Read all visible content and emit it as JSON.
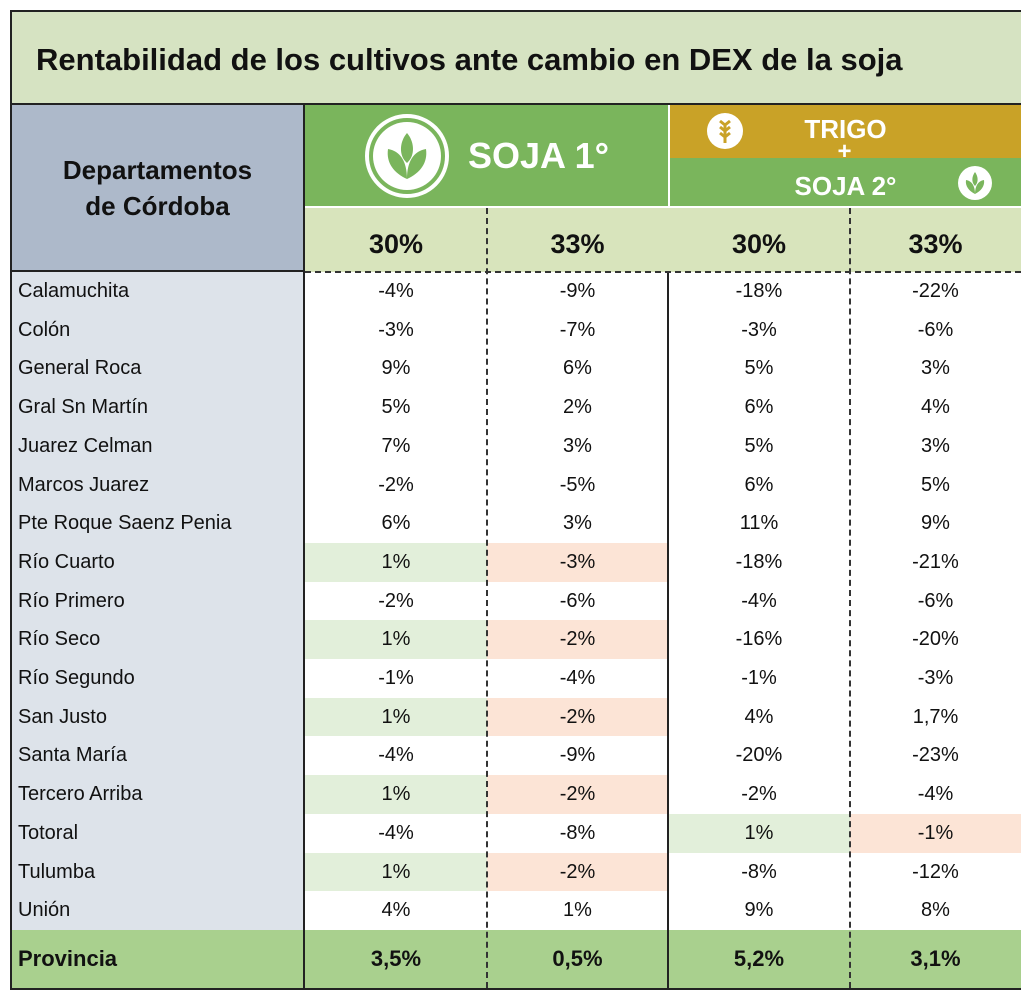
{
  "title": "Rentabilidad de los cultivos ante cambio en DEX de la soja",
  "header": {
    "department": "Departamentos de Córdoba",
    "group1": "SOJA 1°",
    "group2_top": "TRIGO",
    "plus": "+",
    "group2_bottom": "SOJA 2°",
    "subheaders": [
      "30%",
      "33%",
      "30%",
      "33%"
    ]
  },
  "table": {
    "rows": [
      [
        "Calamuchita",
        "-4%",
        "-9%",
        "-18%",
        "-22%"
      ],
      [
        "Colón",
        "-3%",
        "-7%",
        "-3%",
        "-6%"
      ],
      [
        "General Roca",
        "9%",
        "6%",
        "5%",
        "3%"
      ],
      [
        "Gral Sn Martín",
        "5%",
        "2%",
        "6%",
        "4%"
      ],
      [
        "Juarez Celman",
        "7%",
        "3%",
        "5%",
        "3%"
      ],
      [
        "Marcos Juarez",
        "-2%",
        "-5%",
        "6%",
        "5%"
      ],
      [
        "Pte Roque Saenz Penia",
        "6%",
        "3%",
        "11%",
        "9%"
      ],
      [
        "Río Cuarto",
        "1%",
        "-3%",
        "-18%",
        "-21%"
      ],
      [
        "Río Primero",
        "-2%",
        "-6%",
        "-4%",
        "-6%"
      ],
      [
        "Río Seco",
        "1%",
        "-2%",
        "-16%",
        "-20%"
      ],
      [
        "Río Segundo",
        "-1%",
        "-4%",
        "-1%",
        "-3%"
      ],
      [
        "San Justo",
        "1%",
        "-2%",
        "4%",
        "1,7%"
      ],
      [
        "Santa María",
        "-4%",
        "-9%",
        "-20%",
        "-23%"
      ],
      [
        "Tercero Arriba",
        "1%",
        "-2%",
        "-2%",
        "-4%"
      ],
      [
        "Totoral",
        "-4%",
        "-8%",
        "1%",
        "-1%"
      ],
      [
        "Tulumba",
        "1%",
        "-2%",
        "-8%",
        "-12%"
      ],
      [
        "Unión",
        "4%",
        "1%",
        "9%",
        "8%"
      ]
    ],
    "footer": [
      "Provincia",
      "3,5%",
      "0,5%",
      "5,2%",
      "3,1%"
    ]
  }
}
